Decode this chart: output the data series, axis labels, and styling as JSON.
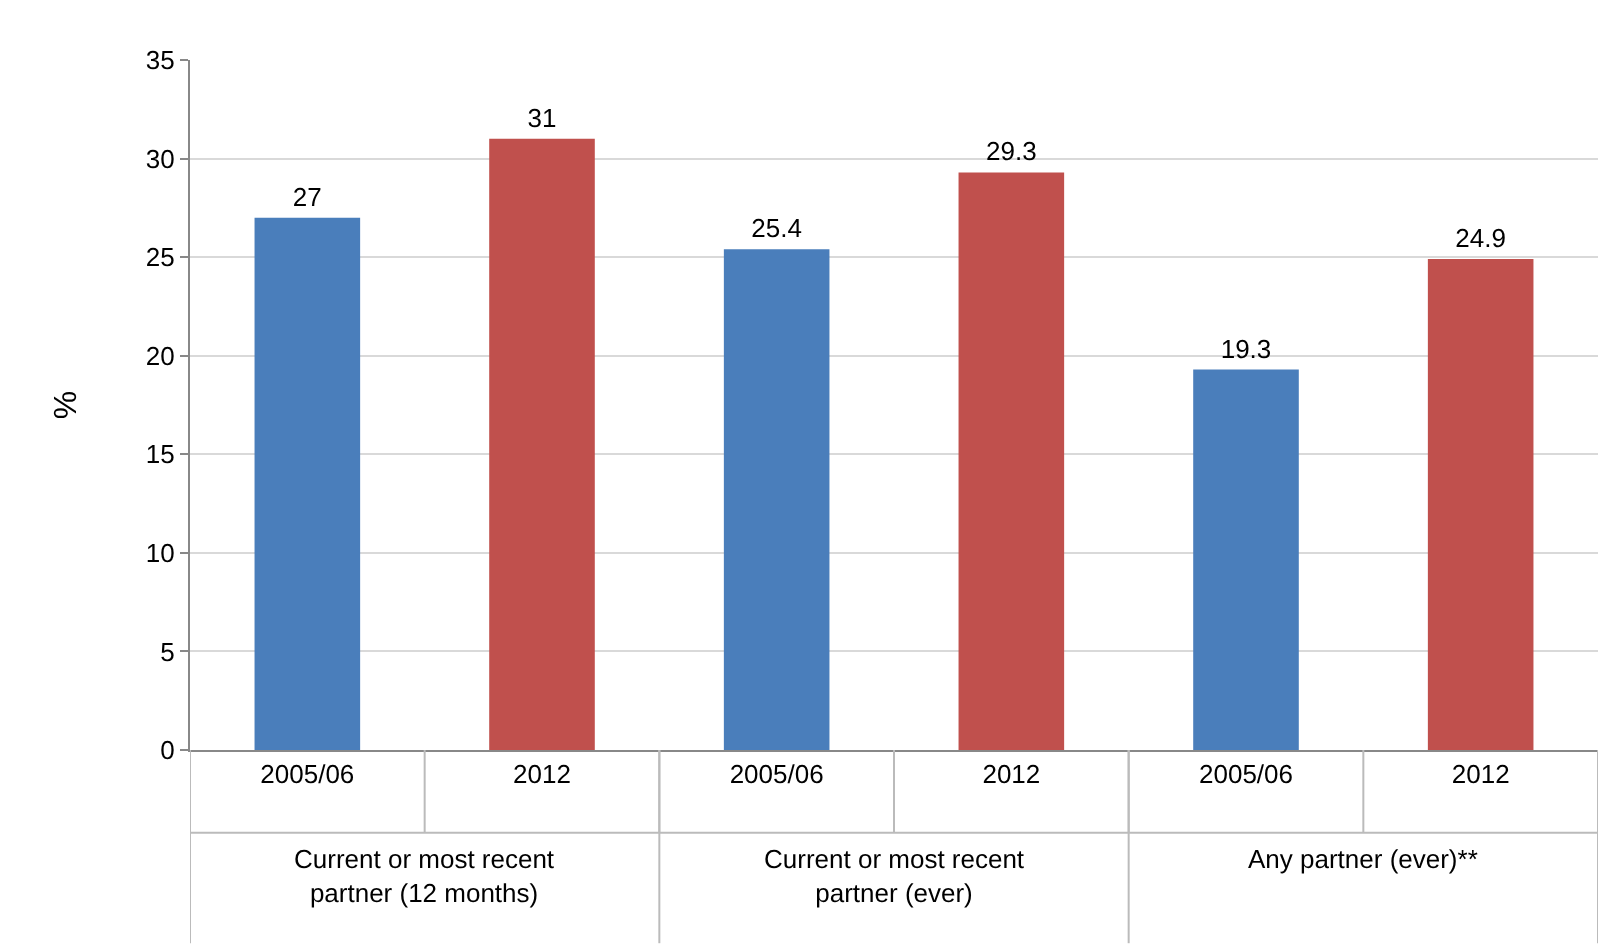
{
  "chart_data": {
    "type": "bar",
    "ylabel": "%",
    "categories": [
      "2005/06",
      "2012",
      "2005/06",
      "2012",
      "2005/06",
      "2012"
    ],
    "values": [
      27,
      31,
      25.4,
      29.3,
      19.3,
      24.9
    ],
    "colors": [
      "#4a7ebb",
      "#c0504d",
      "#4a7ebb",
      "#c0504d",
      "#4a7ebb",
      "#c0504d"
    ],
    "ylim": [
      0,
      35
    ],
    "yticks": [
      0,
      5,
      10,
      15,
      20,
      25,
      30,
      35
    ],
    "grid": "y",
    "data_labels": true,
    "annotations": [
      "Current or most recent\npartner (12 months)",
      "Current or most recent\npartner (ever)",
      "Any partner (ever)**"
    ]
  }
}
